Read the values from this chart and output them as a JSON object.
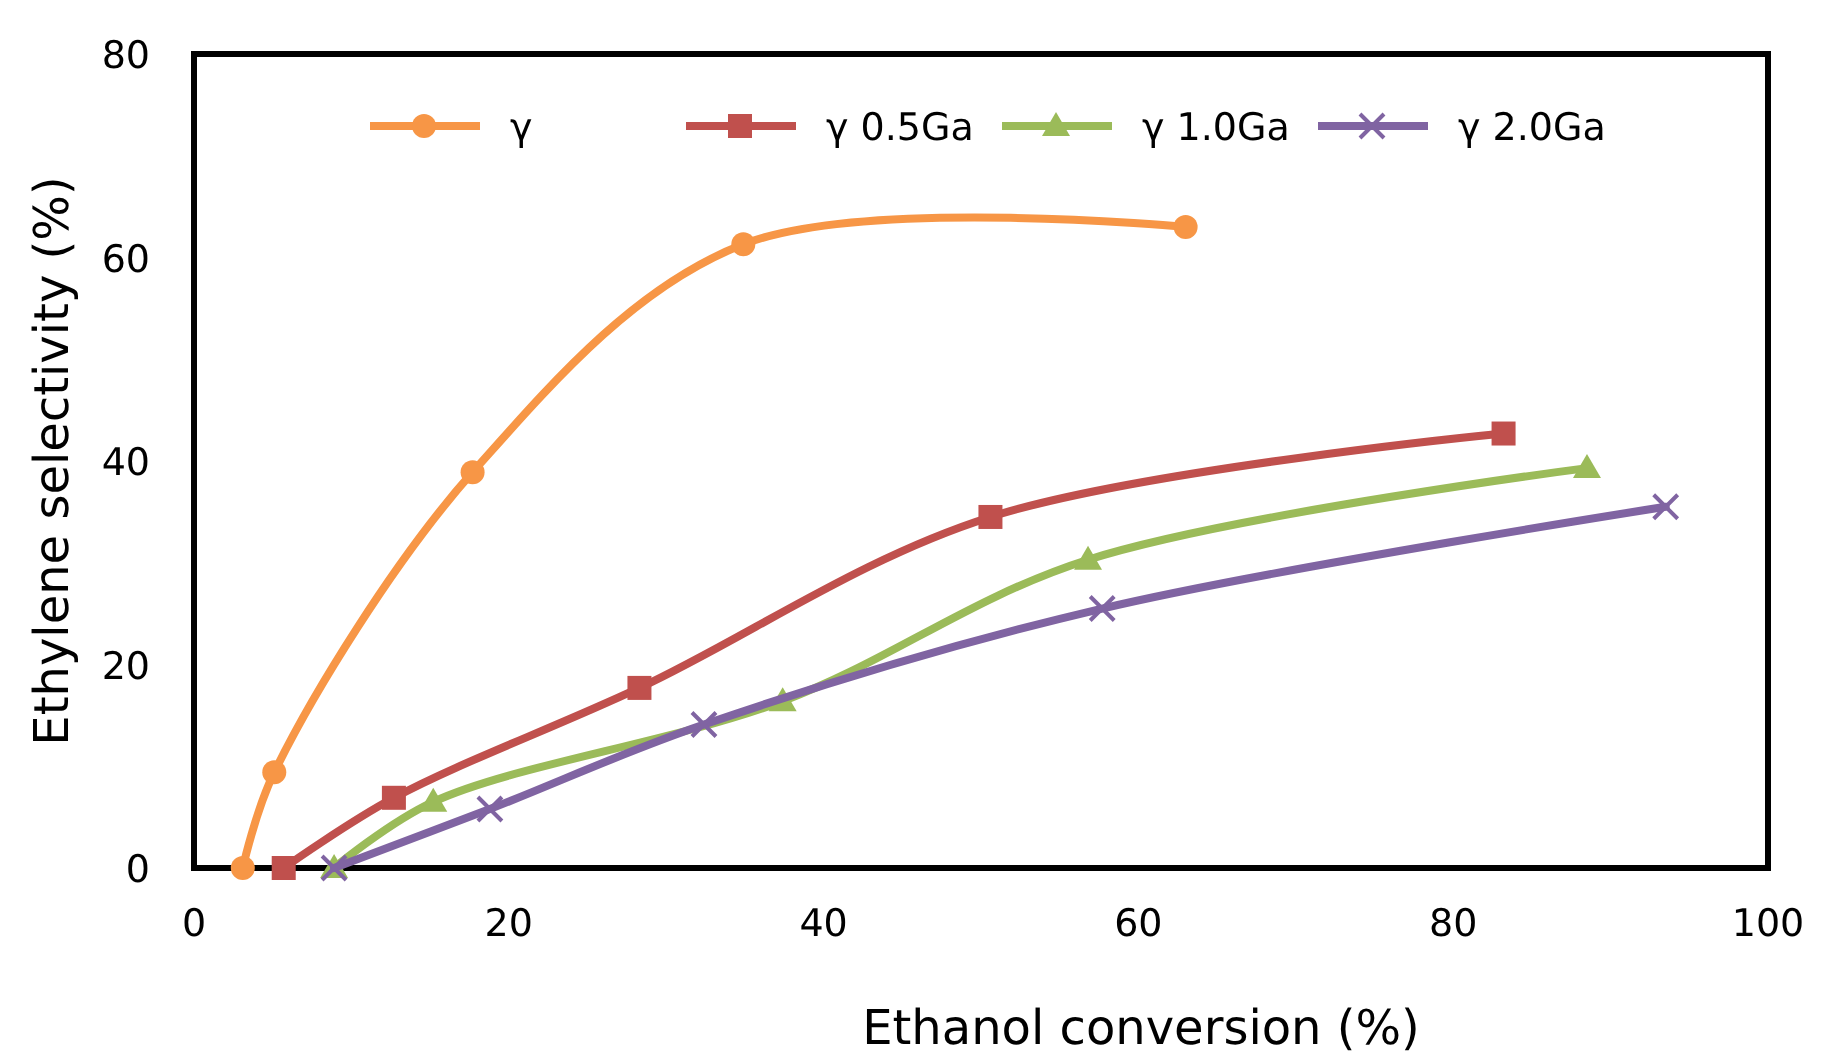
{
  "chart_data": {
    "type": "line",
    "xlabel": "Ethanol conversion (%)",
    "ylabel": "Ethylene selectivity (%)",
    "xlim": [
      0,
      100
    ],
    "xticks": [
      0,
      20,
      40,
      60,
      80,
      100
    ],
    "ylim": [
      0,
      80
    ],
    "yticks": [
      0,
      20,
      40,
      60,
      80
    ],
    "grid": false,
    "legend": "top",
    "line_style": "solid",
    "series": [
      {
        "name": "γ",
        "color": "#f79646",
        "marker": "circle",
        "x": [
          3.1,
          5.1,
          17.7,
          34.9,
          63.0
        ],
        "values": [
          0,
          9.4,
          38.9,
          61.3,
          63.0
        ]
      },
      {
        "name": "γ 0.5Ga",
        "color": "#c0504d",
        "marker": "square",
        "x": [
          5.7,
          12.7,
          28.3,
          50.6,
          83.2
        ],
        "values": [
          0,
          6.9,
          17.7,
          34.5,
          42.7
        ]
      },
      {
        "name": "γ 1.0Ga",
        "color": "#9bbb59",
        "marker": "triangle",
        "x": [
          8.9,
          15.2,
          37.4,
          56.8,
          88.5
        ],
        "values": [
          0,
          6.5,
          16.4,
          30.3,
          39.3
        ]
      },
      {
        "name": "γ 2.0Ga",
        "color": "#8064a2",
        "marker": "cross",
        "x": [
          8.9,
          18.8,
          32.4,
          57.7,
          93.5
        ],
        "values": [
          0,
          5.8,
          14.1,
          25.5,
          35.5
        ]
      }
    ]
  }
}
